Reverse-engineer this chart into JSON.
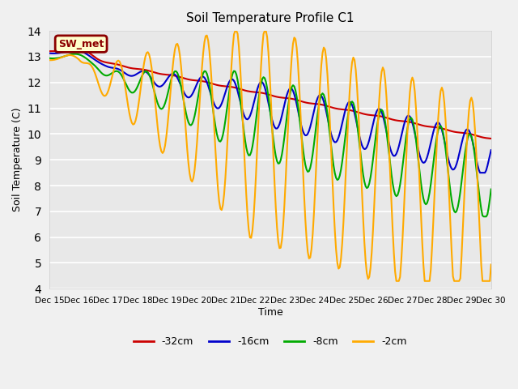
{
  "title": "Soil Temperature Profile C1",
  "xlabel": "Time",
  "ylabel": "Soil Temperature (C)",
  "ylim": [
    4.0,
    14.0
  ],
  "yticks": [
    4.0,
    5.0,
    6.0,
    7.0,
    8.0,
    9.0,
    10.0,
    11.0,
    12.0,
    13.0,
    14.0
  ],
  "fig_bg_color": "#f0f0f0",
  "plot_bg": "#e8e8e8",
  "legend_label": "SW_met",
  "legend_box_color": "#ffffcc",
  "legend_box_edge": "#8b0000",
  "series": {
    "-32cm": {
      "color": "#cc0000",
      "linewidth": 1.5
    },
    "-16cm": {
      "color": "#0000cc",
      "linewidth": 1.5
    },
    "-8cm": {
      "color": "#00aa00",
      "linewidth": 1.5
    },
    "-2cm": {
      "color": "#ffaa00",
      "linewidth": 1.5
    }
  },
  "xtick_labels": [
    "Dec 15",
    "Dec 16",
    "Dec 17",
    "Dec 18",
    "Dec 19",
    "Dec 20",
    "Dec 21",
    "Dec 22",
    "Dec 23",
    "Dec 24",
    "Dec 25",
    "Dec 26",
    "Dec 27",
    "Dec 28",
    "Dec 29",
    "Dec 30"
  ],
  "num_days": 15,
  "points_per_day": 24
}
